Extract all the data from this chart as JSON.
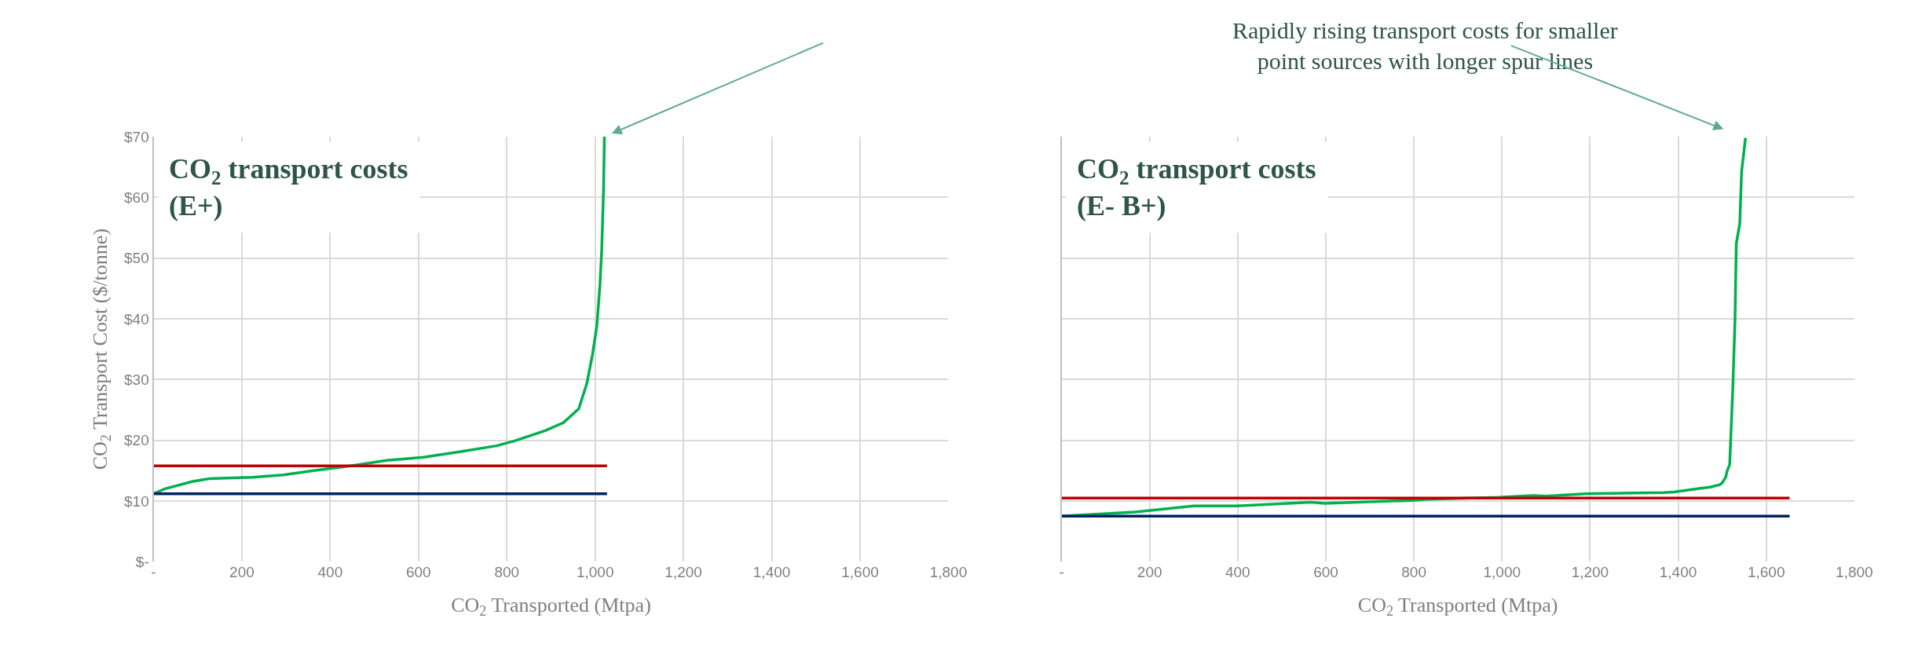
{
  "chart_data": [
    {
      "type": "line",
      "title": "CO$_{2}$ transport costs\n(E+)",
      "xlabel": "CO$_{2}$ Transported (Mtpa)",
      "ylabel": "CO$_{2}$ Transport Cost ($/tonne)",
      "annotations": [
        "Rapidly rising transport costs for smaller\npoint sources with longer spur lines"
      ],
      "xlim": [
        0,
        1800
      ],
      "ylim": [
        0,
        70
      ],
      "xticks": [
        {
          "value": 0,
          "label": "-"
        },
        200,
        400,
        600,
        800,
        {
          "value": 1000,
          "label": "1,000"
        },
        {
          "value": 1200,
          "label": "1,200"
        },
        {
          "value": 1400,
          "label": "1,400"
        },
        {
          "value": 1600,
          "label": "1,600"
        },
        {
          "value": 1800,
          "label": "1,800"
        }
      ],
      "yticks": [
        {
          "value": 0,
          "label": "$-"
        },
        {
          "value": 10,
          "label": "$10"
        },
        {
          "value": 20,
          "label": "$20"
        },
        {
          "value": 30,
          "label": "$30"
        },
        {
          "value": 40,
          "label": "$40"
        },
        {
          "value": 50,
          "label": "$50"
        },
        {
          "value": 60,
          "label": "$60"
        },
        {
          "value": 70,
          "label": "$70"
        }
      ],
      "grid": true,
      "line_style": "solid",
      "marker": "none",
      "series": [
        {
          "color": "#00b050",
          "x": [
            0,
            25,
            87,
            128,
            225,
            294,
            363,
            446,
            528,
            611,
            694,
            777,
            818,
            887,
            928,
            963,
            981,
            994,
            1004,
            1011,
            1015,
            1019,
            1021
          ],
          "values": [
            11.2,
            12,
            13.2,
            13.7,
            13.9,
            14.3,
            15.0,
            15.8,
            16.7,
            17.2,
            18.1,
            19.1,
            19.9,
            21.6,
            22.9,
            25.2,
            29.3,
            34.1,
            38.9,
            45.7,
            51.5,
            61.1,
            70
          ]
        },
        {
          "color": "#c00000",
          "x": [
            0,
            1027
          ],
          "values": [
            15.8,
            15.8
          ]
        },
        {
          "color": "#002060",
          "x": [
            0,
            1027
          ],
          "values": [
            11.2,
            11.2
          ]
        }
      ]
    },
    {
      "type": "line",
      "title": "CO$_{2}$ transport costs\n(E- B+)",
      "xlabel": "CO$_{2}$ Transported (Mtpa)",
      "xlim": [
        0,
        1800
      ],
      "ylim": [
        0,
        70
      ],
      "xticks": [
        {
          "value": 0,
          "label": "-"
        },
        200,
        400,
        600,
        800,
        {
          "value": 1000,
          "label": "1,000"
        },
        {
          "value": 1200,
          "label": "1,200"
        },
        {
          "value": 1400,
          "label": "1,400"
        },
        {
          "value": 1600,
          "label": "1,600"
        },
        {
          "value": 1800,
          "label": "1,800"
        }
      ],
      "yticks": [
        0,
        10,
        20,
        30,
        40,
        50,
        60,
        70
      ],
      "tick_labels": "x",
      "grid": true,
      "line_style": "solid",
      "marker": "none",
      "series": [
        {
          "color": "#00b050",
          "x": [
            0,
            167,
            300,
            399,
            567,
            596,
            795,
            833,
            993,
            1071,
            1100,
            1191,
            1367,
            1391,
            1452,
            1473,
            1495,
            1500,
            1508,
            1511,
            1517,
            1524,
            1529,
            1532,
            1540,
            1544,
            1553
          ],
          "values": [
            7.5,
            8.2,
            9.2,
            9.2,
            9.8,
            9.6,
            10.1,
            10.3,
            10.6,
            10.9,
            10.8,
            11.2,
            11.4,
            11.5,
            12.1,
            12.3,
            12.7,
            13.0,
            13.9,
            14.9,
            16,
            28.3,
            39.6,
            52.4,
            55.7,
            64.2,
            69.8
          ]
        },
        {
          "color": "#c00000",
          "x": [
            0,
            1653
          ],
          "values": [
            10.5,
            10.5
          ]
        },
        {
          "color": "#002060",
          "x": [
            0,
            1653
          ],
          "values": [
            7.5,
            7.5
          ]
        }
      ]
    }
  ]
}
